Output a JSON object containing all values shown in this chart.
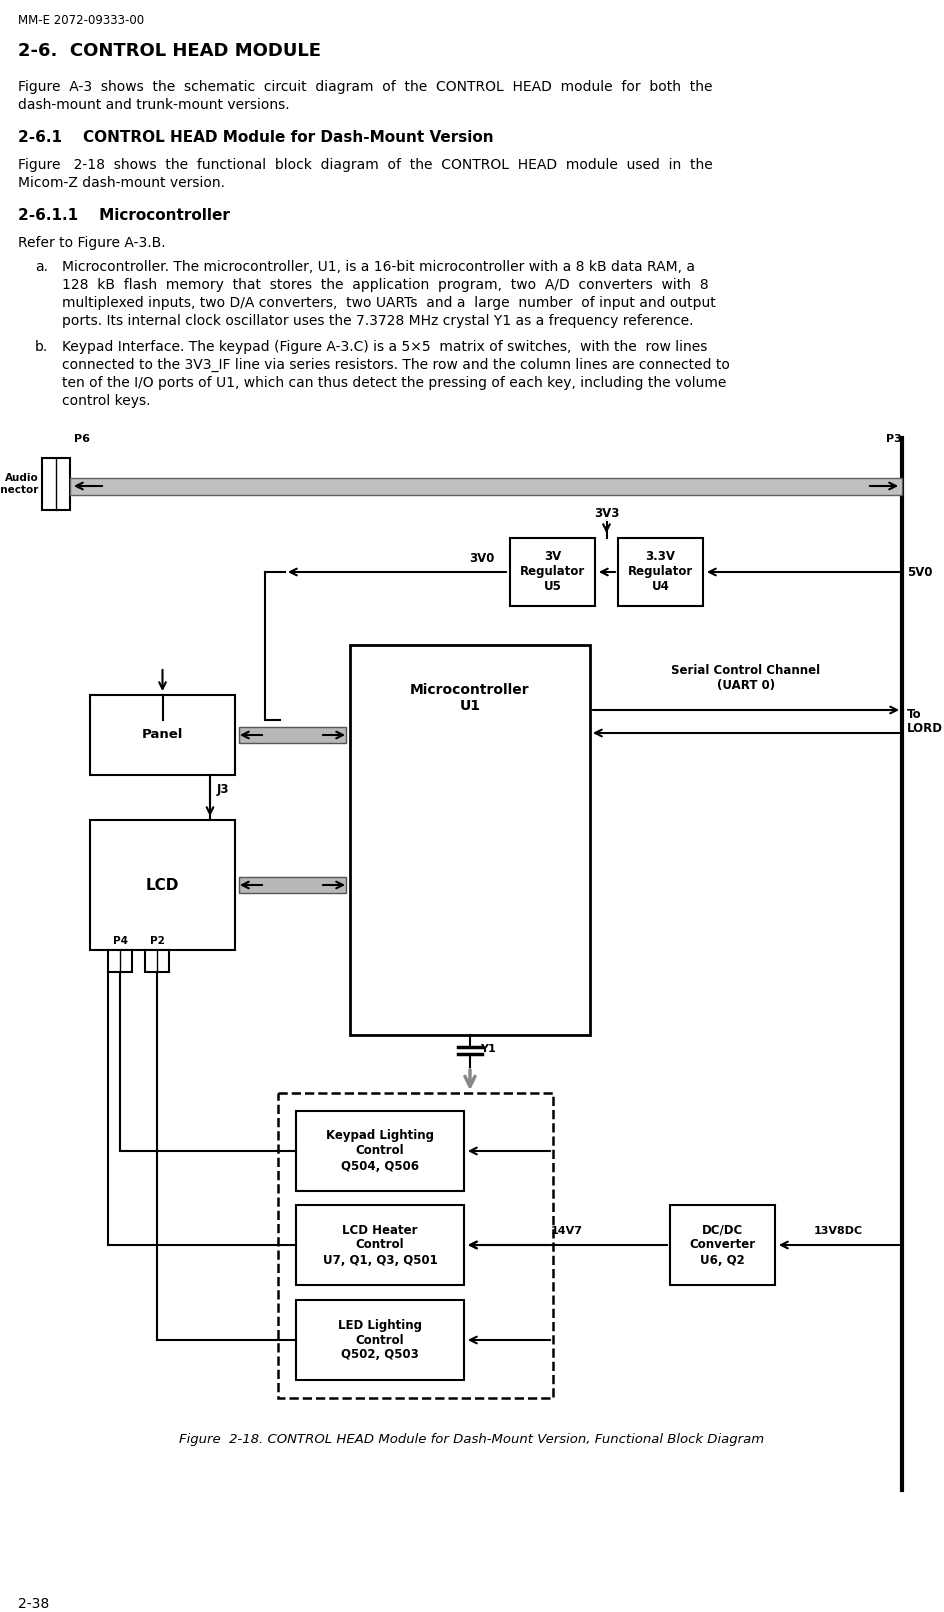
{
  "page_header": "MM-E 2072-09333-00",
  "page_footer": "2-38",
  "section_title": "2-6.  CONTROL HEAD MODULE",
  "para1_line1": "Figure  A-3  shows  the  schematic  circuit  diagram  of  the  CONTROL  HEAD  module  for  both  the",
  "para1_line2": "dash-mount and trunk-mount versions.",
  "section2_title": "2-6.1    CONTROL HEAD Module for Dash-Mount Version",
  "para2_line1": "Figure   2-18  shows  the  functional  block  diagram  of  the  CONTROL  HEAD  module  used  in  the",
  "para2_line2": "Micom-Z dash-mount version.",
  "section3_title": "2-6.1.1    Microcontroller",
  "para3": "Refer to Figure A-3.B.",
  "item_a_line1": "Microcontroller. The microcontroller, U1, is a 16-bit microcontroller with a 8 kB data RAM, a",
  "item_a_line2": "128  kB  flash  memory  that  stores  the  application  program,  two  A/D  converters  with  8",
  "item_a_line3": "multiplexed inputs, two D/A converters,  two UARTs  and a  large  number  of input and output",
  "item_a_line4": "ports. Its internal clock oscillator uses the 7.3728 MHz crystal Y1 as a frequency reference.",
  "item_b_line1": "Keypad Interface. The keypad (Figure A-3.C) is a 5×5  matrix of switches,  with the  row lines",
  "item_b_line2": "connected to the 3V3_IF line via series resistors. The row and the column lines are connected to",
  "item_b_line3": "ten of the I/O ports of U1, which can thus detect the pressing of each key, including the volume",
  "item_b_line4": "control keys.",
  "fig_caption": "Figure  2-18. CONTROL HEAD Module for Dash-Mount Version, Functional Block Diagram",
  "bg_color": "#ffffff"
}
